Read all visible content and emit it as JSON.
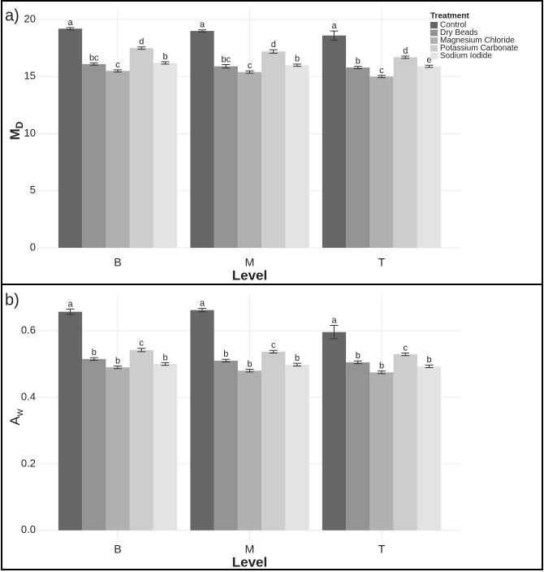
{
  "chart_data": [
    {
      "type": "bar",
      "panel_label": "a)",
      "ylabel": "M",
      "ylabel_subscript": "D",
      "xlabel": "Level",
      "categories": [
        "B",
        "M",
        "T"
      ],
      "series": [
        {
          "name": "Control",
          "color": "#666666",
          "values": [
            19.2,
            19.0,
            18.6
          ],
          "errors": [
            0.1,
            0.1,
            0.4
          ],
          "letters": [
            "a",
            "a",
            "a"
          ]
        },
        {
          "name": "Dry Beads",
          "color": "#939393",
          "values": [
            16.1,
            15.9,
            15.8
          ],
          "errors": [
            0.1,
            0.15,
            0.1
          ],
          "letters": [
            "bc",
            "bc",
            "b"
          ]
        },
        {
          "name": "Magnesium Chloride",
          "color": "#b0b0b0",
          "values": [
            15.5,
            15.4,
            15.0
          ],
          "errors": [
            0.1,
            0.1,
            0.1
          ],
          "letters": [
            "c",
            "c",
            "c"
          ]
        },
        {
          "name": "Potassium Carbonate",
          "color": "#cdcdcd",
          "values": [
            17.5,
            17.2,
            16.7
          ],
          "errors": [
            0.1,
            0.15,
            0.1
          ],
          "letters": [
            "d",
            "d",
            "d"
          ]
        },
        {
          "name": "Sodium Iodide",
          "color": "#e3e3e3",
          "values": [
            16.2,
            16.0,
            15.9
          ],
          "errors": [
            0.1,
            0.1,
            0.1
          ],
          "letters": [
            "b",
            "b",
            "e"
          ]
        }
      ],
      "ylim": [
        -0.5,
        21
      ],
      "yticks": [
        0,
        5,
        10,
        15,
        20
      ],
      "grid": true,
      "legend": "top-right",
      "legend_title": "Treatment"
    },
    {
      "type": "bar",
      "panel_label": "b)",
      "ylabel": "A",
      "ylabel_subscript": "w",
      "xlabel": "Level",
      "categories": [
        "B",
        "M",
        "T"
      ],
      "series": [
        {
          "name": "Control",
          "color": "#666666",
          "values": [
            0.657,
            0.662,
            0.596
          ],
          "errors": [
            0.008,
            0.005,
            0.02
          ],
          "letters": [
            "a",
            "a",
            "a"
          ]
        },
        {
          "name": "Dry Beads",
          "color": "#939393",
          "values": [
            0.515,
            0.51,
            0.505
          ],
          "errors": [
            0.004,
            0.004,
            0.004
          ],
          "letters": [
            "b",
            "b",
            "b"
          ]
        },
        {
          "name": "Magnesium Chloride",
          "color": "#b0b0b0",
          "values": [
            0.49,
            0.48,
            0.475
          ],
          "errors": [
            0.004,
            0.004,
            0.004
          ],
          "letters": [
            "b",
            "b",
            "b"
          ]
        },
        {
          "name": "Potassium Carbonate",
          "color": "#cdcdcd",
          "values": [
            0.542,
            0.537,
            0.529
          ],
          "errors": [
            0.005,
            0.004,
            0.004
          ],
          "letters": [
            "c",
            "c",
            "c"
          ]
        },
        {
          "name": "Sodium Iodide",
          "color": "#e3e3e3",
          "values": [
            0.5,
            0.498,
            0.493
          ],
          "errors": [
            0.004,
            0.004,
            0.004
          ],
          "letters": [
            "b",
            "b",
            "b"
          ]
        }
      ],
      "ylim": [
        -0.03,
        0.71
      ],
      "yticks": [
        {
          "value": 0,
          "label": "0.0"
        },
        0.2,
        0.4,
        0.6
      ],
      "grid": true,
      "legend": "none"
    }
  ]
}
